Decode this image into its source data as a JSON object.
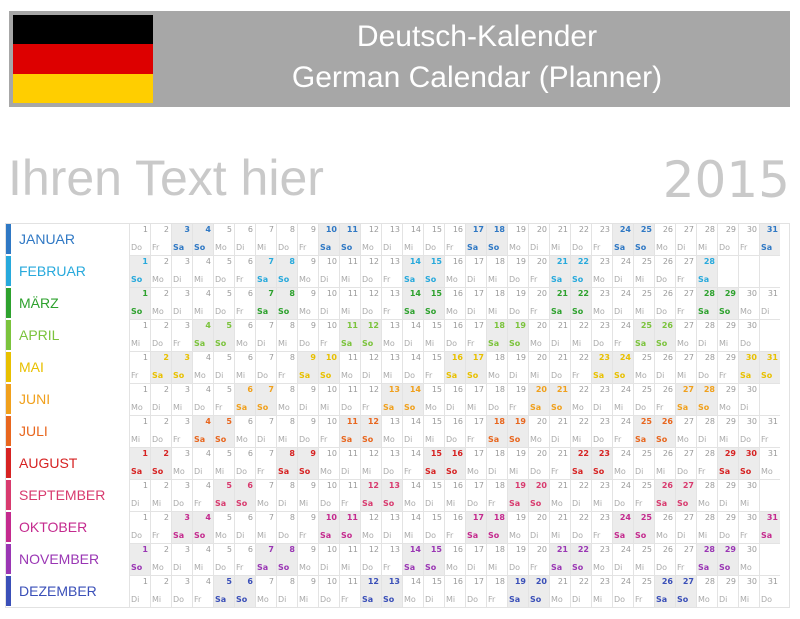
{
  "header": {
    "title_line1": "Deutsch-Kalender",
    "title_line2": "German Calendar (Planner)",
    "flag_colors": [
      "#000000",
      "#dd0000",
      "#ffce00"
    ]
  },
  "placeholder_text": "Ihren Text hier",
  "year": "2015",
  "weekday_labels": [
    "Mo",
    "Di",
    "Mi",
    "Do",
    "Fr",
    "Sa",
    "So"
  ],
  "months": [
    {
      "name": "JANUAR",
      "days": 31,
      "first_weekday": 3,
      "color": "#2f78c4"
    },
    {
      "name": "FEBRUAR",
      "days": 28,
      "first_weekday": 6,
      "color": "#27a9dc"
    },
    {
      "name": "MÄRZ",
      "days": 31,
      "first_weekday": 6,
      "color": "#2da12d"
    },
    {
      "name": "APRIL",
      "days": 30,
      "first_weekday": 2,
      "color": "#7bc33c"
    },
    {
      "name": "MAI",
      "days": 31,
      "first_weekday": 4,
      "color": "#e8c000"
    },
    {
      "name": "JUNI",
      "days": 30,
      "first_weekday": 0,
      "color": "#f0a01c"
    },
    {
      "name": "JULI",
      "days": 31,
      "first_weekday": 2,
      "color": "#e8661e"
    },
    {
      "name": "AUGUST",
      "days": 31,
      "first_weekday": 5,
      "color": "#d62222"
    },
    {
      "name": "SEPTEMBER",
      "days": 30,
      "first_weekday": 1,
      "color": "#d83a6e"
    },
    {
      "name": "OKTOBER",
      "days": 31,
      "first_weekday": 3,
      "color": "#c42a8e"
    },
    {
      "name": "NOVEMBER",
      "days": 30,
      "first_weekday": 6,
      "color": "#9a36b4"
    },
    {
      "name": "DEZEMBER",
      "days": 31,
      "first_weekday": 1,
      "color": "#3a4fb8"
    }
  ]
}
